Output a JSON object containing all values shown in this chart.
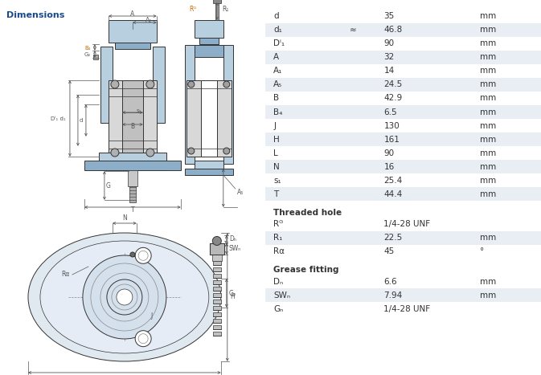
{
  "title": "Dimensions",
  "table_rows": [
    {
      "param": "d",
      "approx": false,
      "value": "35",
      "unit": "mm",
      "shaded": false
    },
    {
      "param": "d₁",
      "approx": true,
      "value": "46.8",
      "unit": "mm",
      "shaded": true
    },
    {
      "param": "Dⁱ₁",
      "approx": false,
      "value": "90",
      "unit": "mm",
      "shaded": false
    },
    {
      "param": "A",
      "approx": false,
      "value": "32",
      "unit": "mm",
      "shaded": true
    },
    {
      "param": "A₁",
      "approx": false,
      "value": "14",
      "unit": "mm",
      "shaded": false
    },
    {
      "param": "A₅",
      "approx": false,
      "value": "24.5",
      "unit": "mm",
      "shaded": true
    },
    {
      "param": "B",
      "approx": false,
      "value": "42.9",
      "unit": "mm",
      "shaded": false
    },
    {
      "param": "B₄",
      "approx": false,
      "value": "6.5",
      "unit": "mm",
      "shaded": true
    },
    {
      "param": "J",
      "approx": false,
      "value": "130",
      "unit": "mm",
      "shaded": false
    },
    {
      "param": "H",
      "approx": false,
      "value": "161",
      "unit": "mm",
      "shaded": true
    },
    {
      "param": "L",
      "approx": false,
      "value": "90",
      "unit": "mm",
      "shaded": false
    },
    {
      "param": "N",
      "approx": false,
      "value": "16",
      "unit": "mm",
      "shaded": true
    },
    {
      "param": "s₁",
      "approx": false,
      "value": "25.4",
      "unit": "mm",
      "shaded": false
    },
    {
      "param": "T",
      "approx": false,
      "value": "44.4",
      "unit": "mm",
      "shaded": true
    }
  ],
  "section_threaded": "Threaded hole",
  "threaded_rows": [
    {
      "param": "Rᴳ",
      "approx": false,
      "value": "1/4-28 UNF",
      "unit": "",
      "shaded": false
    },
    {
      "param": "R₁",
      "approx": false,
      "value": "22.5",
      "unit": "mm",
      "shaded": true
    },
    {
      "param": "Rα",
      "approx": false,
      "value": "45",
      "unit": "°",
      "shaded": false
    }
  ],
  "section_grease": "Grease fitting",
  "grease_rows": [
    {
      "param": "Dₙ",
      "approx": false,
      "value": "6.6",
      "unit": "mm",
      "shaded": false
    },
    {
      "param": "SWₙ",
      "approx": false,
      "value": "7.94",
      "unit": "mm",
      "shaded": true
    },
    {
      "param": "Gₙ",
      "approx": false,
      "value": "1/4-28 UNF",
      "unit": "",
      "shaded": false
    }
  ],
  "bg_color": "#ffffff",
  "shaded_color": "#e8eef4",
  "text_color": "#333333",
  "blue_fill": "#b8cfe0",
  "blue_mid": "#8daec8",
  "grey_fill": "#d8d8d8",
  "dark": "#333333",
  "dim_color": "#555555",
  "orange_color": "#cc6600"
}
